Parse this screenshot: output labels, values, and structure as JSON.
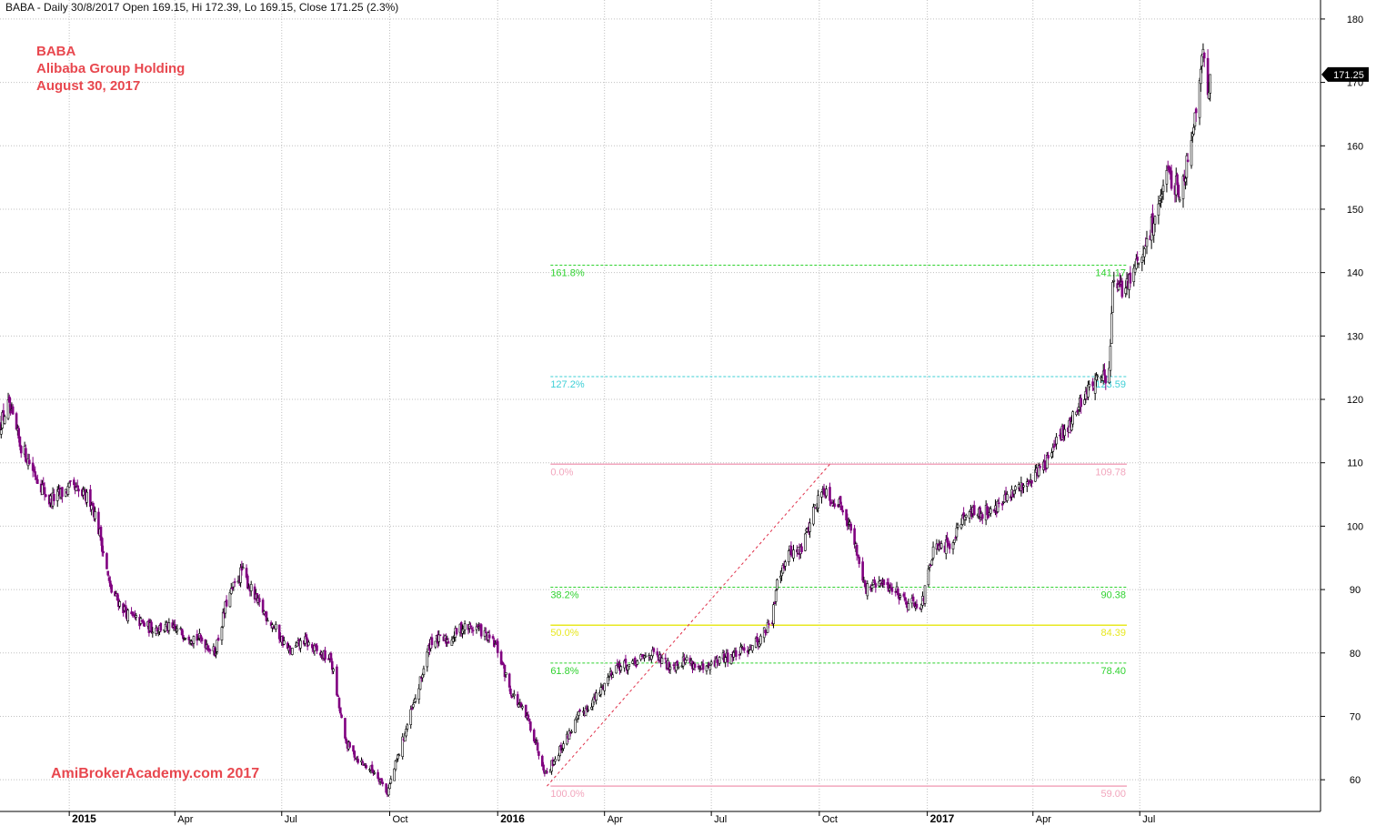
{
  "header": {
    "ohlc_line": "BABA - Daily 30/8/2017 Open 169.15, Hi 172.39, Lo 169.15, Close 171.25 (2.3%)"
  },
  "annotations": {
    "symbol": "BABA",
    "company": "Alibaba Group Holding",
    "date": "August 30, 2017",
    "watermark": "AmiBrokerAcademy.com  2017"
  },
  "colors": {
    "up_candle": "#000000",
    "down_candle": "#800080",
    "grid": "#c0c0c0",
    "fib_green": "#2fd22f",
    "fib_cyan": "#3ecfd6",
    "fib_pink": "#f2a6bd",
    "fib_yellow": "#e8e820",
    "trend_line": "#e0304a",
    "price_tag_bg": "#000000",
    "price_tag_text": "#ffffff"
  },
  "chart_data": {
    "type": "candlestick",
    "symbol": "BABA",
    "interval": "Daily",
    "y_range": [
      55,
      183
    ],
    "y_ticks": [
      60,
      70,
      80,
      90,
      100,
      110,
      120,
      130,
      140,
      150,
      160,
      170,
      180
    ],
    "x_range": [
      "2014-11-03",
      "2017-12-02"
    ],
    "x_ticks": [
      {
        "label": "2015",
        "date": "2015-01-01",
        "bold": true
      },
      {
        "label": "Apr",
        "date": "2015-04-01",
        "bold": false
      },
      {
        "label": "Jul",
        "date": "2015-07-01",
        "bold": false
      },
      {
        "label": "Oct",
        "date": "2015-10-01",
        "bold": false
      },
      {
        "label": "2016",
        "date": "2016-01-01",
        "bold": true
      },
      {
        "label": "Apr",
        "date": "2016-04-01",
        "bold": false
      },
      {
        "label": "Jul",
        "date": "2016-07-01",
        "bold": false
      },
      {
        "label": "Oct",
        "date": "2016-10-01",
        "bold": false
      },
      {
        "label": "2017",
        "date": "2017-01-01",
        "bold": true
      },
      {
        "label": "Apr",
        "date": "2017-04-01",
        "bold": false
      },
      {
        "label": "Jul",
        "date": "2017-07-01",
        "bold": false
      }
    ],
    "last_price": {
      "value": 171.25,
      "label": "171.25"
    },
    "price_path": [
      [
        "2014-11-03",
        116
      ],
      [
        "2014-11-10",
        119
      ],
      [
        "2014-11-20",
        113
      ],
      [
        "2014-12-01",
        109
      ],
      [
        "2014-12-15",
        104
      ],
      [
        "2015-01-02",
        106
      ],
      [
        "2015-01-20",
        104
      ],
      [
        "2015-01-28",
        98
      ],
      [
        "2015-02-05",
        90
      ],
      [
        "2015-02-20",
        86
      ],
      [
        "2015-03-10",
        84
      ],
      [
        "2015-03-25",
        84
      ],
      [
        "2015-04-10",
        83
      ],
      [
        "2015-04-25",
        82
      ],
      [
        "2015-05-05",
        80
      ],
      [
        "2015-05-15",
        88
      ],
      [
        "2015-05-28",
        93
      ],
      [
        "2015-06-10",
        88
      ],
      [
        "2015-06-25",
        84
      ],
      [
        "2015-07-08",
        80
      ],
      [
        "2015-07-20",
        82
      ],
      [
        "2015-08-01",
        80
      ],
      [
        "2015-08-12",
        79
      ],
      [
        "2015-08-24",
        66
      ],
      [
        "2015-09-05",
        63
      ],
      [
        "2015-09-20",
        61
      ],
      [
        "2015-09-29",
        58
      ],
      [
        "2015-10-15",
        68
      ],
      [
        "2015-10-25",
        74
      ],
      [
        "2015-11-05",
        82
      ],
      [
        "2015-11-20",
        82
      ],
      [
        "2015-12-01",
        84
      ],
      [
        "2015-12-15",
        84
      ],
      [
        "2015-12-31",
        81
      ],
      [
        "2016-01-12",
        74
      ],
      [
        "2016-01-28",
        69
      ],
      [
        "2016-02-11",
        61
      ],
      [
        "2016-02-24",
        65
      ],
      [
        "2016-03-10",
        70
      ],
      [
        "2016-03-25",
        73
      ],
      [
        "2016-04-10",
        78
      ],
      [
        "2016-04-25",
        78
      ],
      [
        "2016-05-10",
        80
      ],
      [
        "2016-05-25",
        78
      ],
      [
        "2016-06-10",
        79
      ],
      [
        "2016-06-25",
        77
      ],
      [
        "2016-07-08",
        79
      ],
      [
        "2016-07-25",
        80
      ],
      [
        "2016-08-10",
        82
      ],
      [
        "2016-08-22",
        85
      ],
      [
        "2016-08-26",
        92
      ],
      [
        "2016-09-06",
        96
      ],
      [
        "2016-09-15",
        96
      ],
      [
        "2016-09-27",
        103
      ],
      [
        "2016-10-05",
        106
      ],
      [
        "2016-10-13",
        104
      ],
      [
        "2016-10-22",
        103
      ],
      [
        "2016-11-02",
        96
      ],
      [
        "2016-11-10",
        90
      ],
      [
        "2016-11-20",
        91
      ],
      [
        "2016-12-05",
        90
      ],
      [
        "2016-12-15",
        88
      ],
      [
        "2016-12-28",
        88
      ],
      [
        "2017-01-06",
        96
      ],
      [
        "2017-01-20",
        97
      ],
      [
        "2017-02-01",
        102
      ],
      [
        "2017-02-15",
        102
      ],
      [
        "2017-03-01",
        103
      ],
      [
        "2017-03-15",
        105
      ],
      [
        "2017-04-01",
        108
      ],
      [
        "2017-04-12",
        110
      ],
      [
        "2017-04-24",
        114
      ],
      [
        "2017-05-05",
        117
      ],
      [
        "2017-05-15",
        121
      ],
      [
        "2017-05-25",
        123
      ],
      [
        "2017-06-05",
        124
      ],
      [
        "2017-06-08",
        138
      ],
      [
        "2017-06-15",
        137
      ],
      [
        "2017-06-25",
        140
      ],
      [
        "2017-07-05",
        143
      ],
      [
        "2017-07-15",
        150
      ],
      [
        "2017-07-25",
        155
      ],
      [
        "2017-08-05",
        153
      ],
      [
        "2017-08-12",
        159
      ],
      [
        "2017-08-17",
        165
      ],
      [
        "2017-08-23",
        175
      ],
      [
        "2017-08-28",
        168
      ],
      [
        "2017-08-30",
        171.25
      ]
    ],
    "fibonacci": {
      "swing_low": 59.0,
      "swing_high": 109.78,
      "from_date": "2016-02-15",
      "to_date": "2017-06-20",
      "levels": [
        {
          "pct": "161.8%",
          "value": 141.17,
          "value_label": "141.17",
          "color_key": "fib_green"
        },
        {
          "pct": "127.2%",
          "value": 123.59,
          "value_label": "123.59",
          "color_key": "fib_cyan"
        },
        {
          "pct": "0.0%",
          "value": 109.78,
          "value_label": "109.78",
          "color_key": "fib_pink"
        },
        {
          "pct": "38.2%",
          "value": 90.38,
          "value_label": "90.38",
          "color_key": "fib_green"
        },
        {
          "pct": "50.0%",
          "value": 84.39,
          "value_label": "84.39",
          "color_key": "fib_yellow"
        },
        {
          "pct": "61.8%",
          "value": 78.4,
          "value_label": "78.40",
          "color_key": "fib_green"
        },
        {
          "pct": "100.0%",
          "value": 59.0,
          "value_label": "59.00",
          "color_key": "fib_pink"
        }
      ],
      "trend_line": {
        "from": [
          "2016-02-12",
          59.0
        ],
        "to": [
          "2016-10-10",
          109.78
        ]
      }
    }
  }
}
